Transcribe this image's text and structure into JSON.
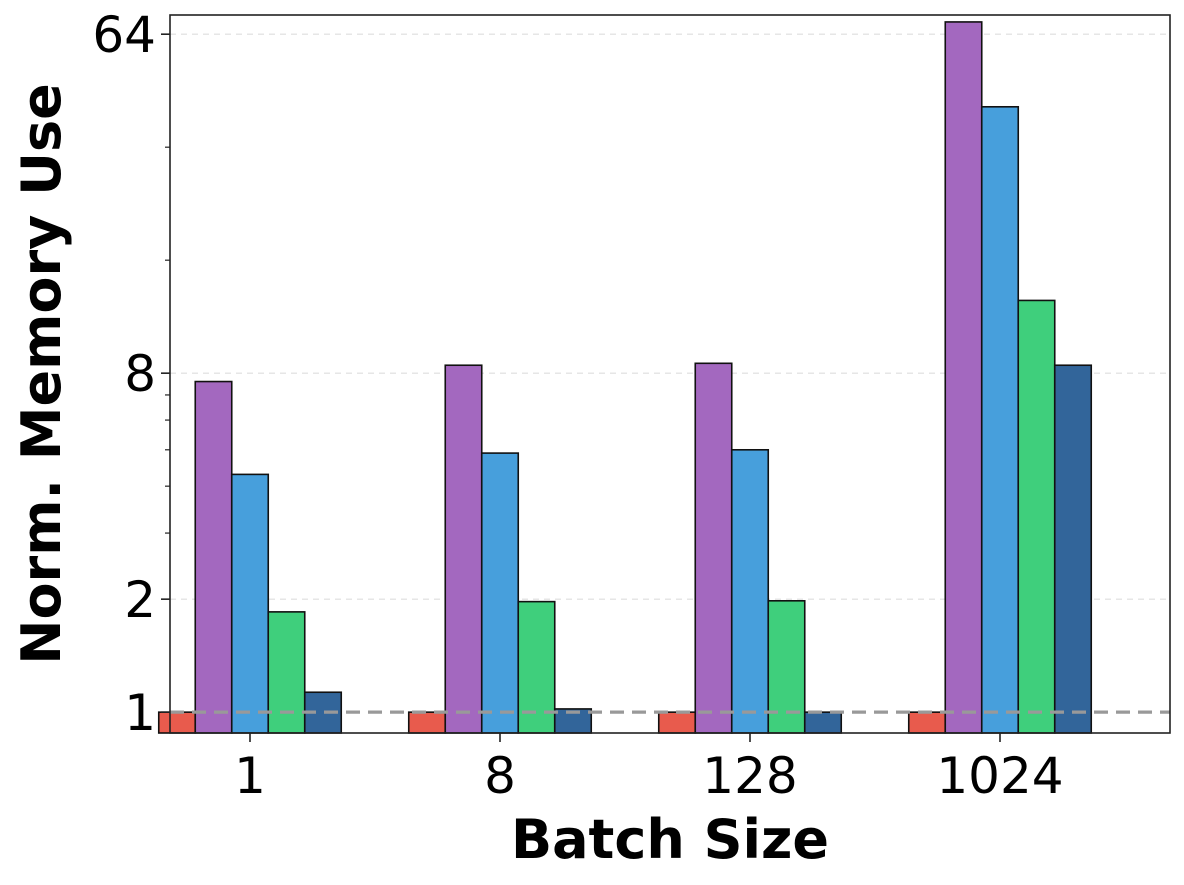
{
  "chart_data": {
    "type": "bar",
    "title": "",
    "xlabel": "Batch Size",
    "ylabel": "Norm. Memory Use",
    "y_scale": "log2",
    "ylim": [
      0.88,
      72
    ],
    "y_ticks": [
      1,
      2,
      8,
      64
    ],
    "y_tick_labels": [
      "1",
      "2",
      "8",
      "64"
    ],
    "categories": [
      "1",
      "8",
      "128",
      "1024"
    ],
    "grid": "horizontal dashed at major ticks",
    "legend": "none",
    "reference_line": {
      "value": 1,
      "style": "dashed",
      "color": "#999999"
    },
    "series": [
      {
        "color": "#e85b4d",
        "values": [
          1.0,
          1.0,
          1.0,
          1.0
        ]
      },
      {
        "color": "#a368bf",
        "values": [
          7.6,
          8.4,
          8.5,
          69
        ]
      },
      {
        "color": "#479fdc",
        "values": [
          4.3,
          4.9,
          5.0,
          41
        ]
      },
      {
        "color": "#3fcf7c",
        "values": [
          1.85,
          1.97,
          1.98,
          12.5
        ]
      },
      {
        "color": "#32659a",
        "values": [
          1.13,
          1.02,
          1.0,
          8.4
        ]
      }
    ]
  }
}
